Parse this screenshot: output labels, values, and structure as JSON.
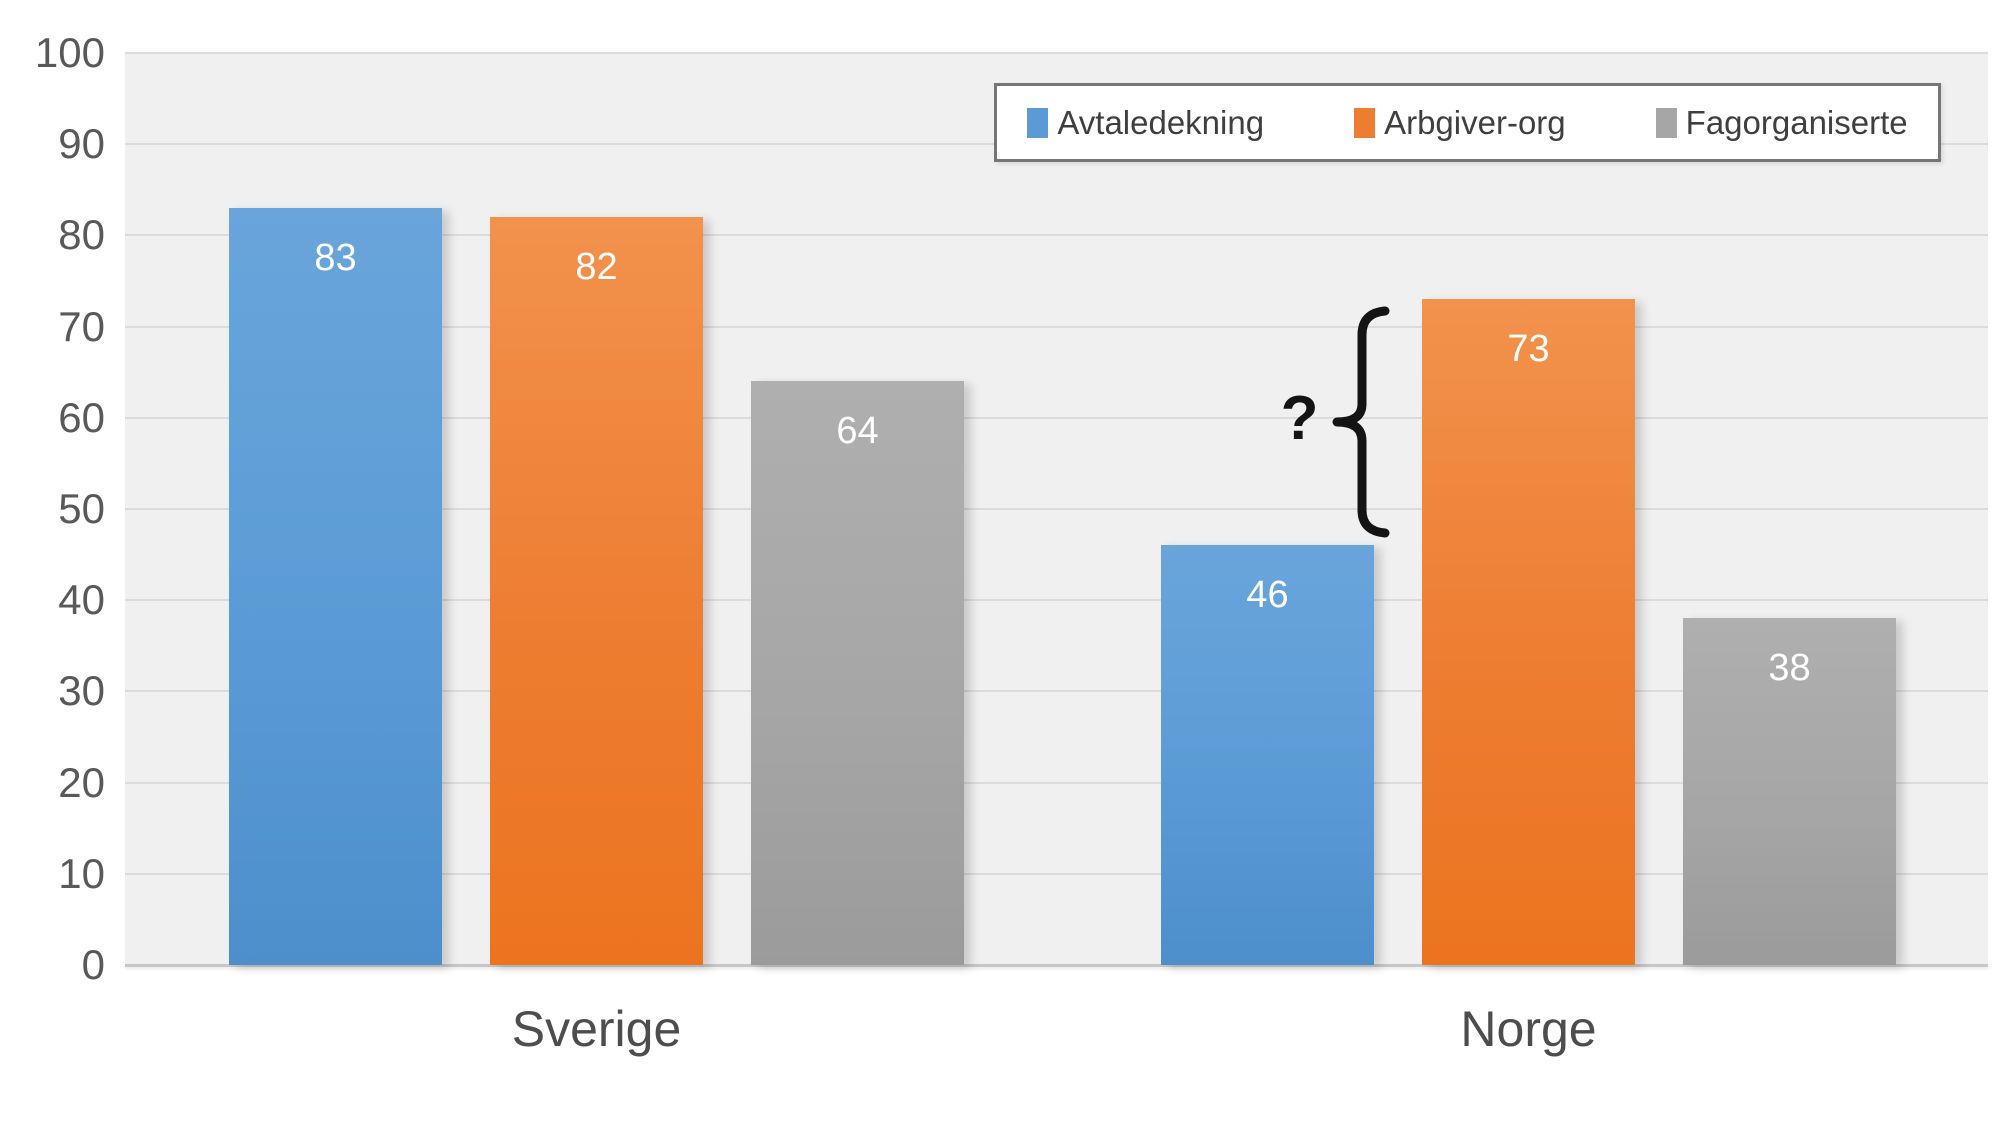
{
  "chart_data": {
    "type": "bar",
    "title": "",
    "categories": [
      "Sverige",
      "Norge"
    ],
    "series": [
      {
        "name": "Avtaledekning",
        "color": "#5B9BD5",
        "color_top": "#69A5DB",
        "color_bottom": "#4D8FCB",
        "values": [
          83,
          46
        ]
      },
      {
        "name": "Arbgiver-org",
        "color": "#ED7D31",
        "color_top": "#F2924D",
        "color_bottom": "#EC741F",
        "values": [
          82,
          73
        ]
      },
      {
        "name": "Fagorganiserte",
        "color": "#A6A6A6",
        "color_top": "#AFAFAF",
        "color_bottom": "#9B9B9B",
        "values": [
          64,
          38
        ]
      }
    ],
    "ylim": [
      0,
      100
    ],
    "yticks": [
      0,
      10,
      20,
      30,
      40,
      50,
      60,
      70,
      80,
      90,
      100
    ],
    "grid": true,
    "legend_position": "top-right",
    "value_label_style": "inside-end white",
    "plot_background": "#f0f0f0",
    "annotation": {
      "text": "?",
      "shape": "curly-brace",
      "category": "Norge",
      "from_value": 46,
      "to_value": 73,
      "meaning": "questioned gap between Avtaledekning (46) and Arbgiver-org (73) in Norge",
      "color": "#141414"
    }
  }
}
